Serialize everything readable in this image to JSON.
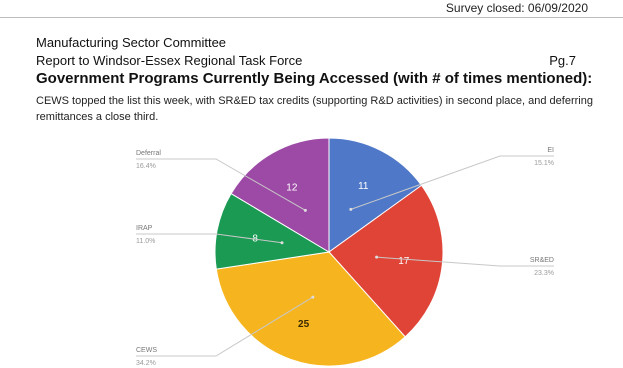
{
  "header": {
    "survey_closed": "Survey closed: 06/09/2020",
    "committee": "Manufacturing Sector Committee",
    "report": "Report to Windsor-Essex Regional Task Force",
    "page": "Pg.7",
    "title": "Government Programs Currently Being Accessed (with # of times mentioned):",
    "description": "CEWS topped the list this week, with SR&ED tax credits (supporting R&D activities) in second place, and deferring remittances a close third."
  },
  "chart_data": {
    "type": "pie",
    "title": "",
    "slices": [
      {
        "label": "EI",
        "value": 11,
        "percent": "15.1%",
        "color": "#4f79c8"
      },
      {
        "label": "SR&ED",
        "value": 17,
        "percent": "23.3%",
        "color": "#e04437"
      },
      {
        "label": "CEWS",
        "value": 25,
        "percent": "34.2%",
        "color": "#f6b51f"
      },
      {
        "label": "IRAP",
        "value": 8,
        "percent": "11.0%",
        "color": "#1a9a53"
      },
      {
        "label": "Deferral",
        "value": 12,
        "percent": "16.4%",
        "color": "#9c4aa5"
      }
    ],
    "start_angle_deg": 0,
    "direction": "clockwise",
    "label_style": "outside labels with leader lines"
  }
}
